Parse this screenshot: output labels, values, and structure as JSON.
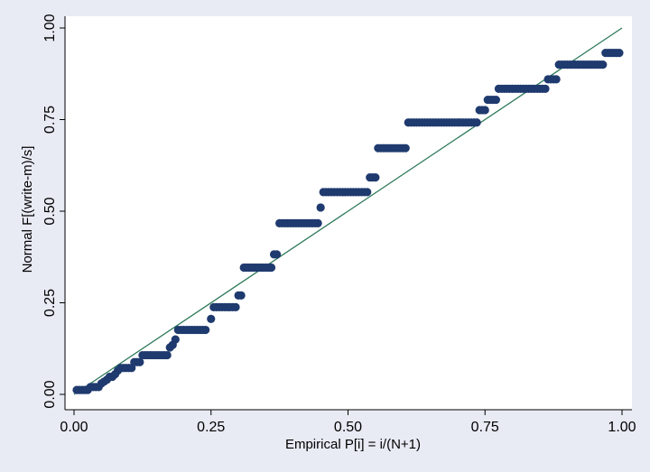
{
  "chart_data": {
    "type": "scatter",
    "title": "",
    "xlabel": "Empirical P[i] = i/(N+1)",
    "ylabel": "Normal F[(write-m)/s]",
    "xlim": [
      0,
      1
    ],
    "ylim": [
      0,
      1
    ],
    "xticks": [
      0,
      0.25,
      0.5,
      0.75,
      1
    ],
    "yticks": [
      0,
      0.25,
      0.5,
      0.75,
      1
    ],
    "xtick_labels": [
      "0.00",
      "0.25",
      "0.50",
      "0.75",
      "1.00"
    ],
    "ytick_labels": [
      "0.00",
      "0.25",
      "0.50",
      "0.75",
      "1.00"
    ],
    "grid": false,
    "legend": "none",
    "reference_line": {
      "x": [
        0,
        1
      ],
      "y": [
        0,
        1
      ]
    },
    "colors": {
      "background": "#e8ebf4",
      "plot_area": "#ffffff",
      "markers": "#1f3a6e",
      "reference_line": "#2e7a5a"
    },
    "series": [
      {
        "points": [
          [
            0.005,
            0.012
          ],
          [
            0.01,
            0.012
          ],
          [
            0.015,
            0.012
          ],
          [
            0.02,
            0.012
          ],
          [
            0.025,
            0.012
          ],
          [
            0.03,
            0.02
          ],
          [
            0.035,
            0.02
          ],
          [
            0.04,
            0.02
          ],
          [
            0.045,
            0.02
          ],
          [
            0.05,
            0.03
          ],
          [
            0.055,
            0.035
          ],
          [
            0.06,
            0.04
          ],
          [
            0.065,
            0.048
          ],
          [
            0.07,
            0.048
          ],
          [
            0.075,
            0.055
          ],
          [
            0.08,
            0.065
          ],
          [
            0.085,
            0.072
          ],
          [
            0.09,
            0.072
          ],
          [
            0.095,
            0.072
          ],
          [
            0.1,
            0.072
          ],
          [
            0.105,
            0.072
          ],
          [
            0.11,
            0.088
          ],
          [
            0.115,
            0.088
          ],
          [
            0.12,
            0.088
          ],
          [
            0.125,
            0.107
          ],
          [
            0.13,
            0.107
          ],
          [
            0.135,
            0.107
          ],
          [
            0.14,
            0.107
          ],
          [
            0.145,
            0.107
          ],
          [
            0.15,
            0.107
          ],
          [
            0.155,
            0.107
          ],
          [
            0.16,
            0.107
          ],
          [
            0.165,
            0.107
          ],
          [
            0.17,
            0.107
          ],
          [
            0.175,
            0.128
          ],
          [
            0.18,
            0.135
          ],
          [
            0.185,
            0.15
          ],
          [
            0.19,
            0.176
          ],
          [
            0.195,
            0.176
          ],
          [
            0.2,
            0.176
          ],
          [
            0.205,
            0.176
          ],
          [
            0.21,
            0.176
          ],
          [
            0.215,
            0.176
          ],
          [
            0.22,
            0.176
          ],
          [
            0.225,
            0.176
          ],
          [
            0.23,
            0.176
          ],
          [
            0.235,
            0.176
          ],
          [
            0.24,
            0.176
          ],
          [
            0.25,
            0.206
          ],
          [
            0.255,
            0.238
          ],
          [
            0.26,
            0.238
          ],
          [
            0.265,
            0.238
          ],
          [
            0.27,
            0.238
          ],
          [
            0.275,
            0.238
          ],
          [
            0.28,
            0.238
          ],
          [
            0.285,
            0.238
          ],
          [
            0.29,
            0.238
          ],
          [
            0.295,
            0.238
          ],
          [
            0.3,
            0.27
          ],
          [
            0.305,
            0.27
          ],
          [
            0.31,
            0.346
          ],
          [
            0.315,
            0.346
          ],
          [
            0.32,
            0.346
          ],
          [
            0.325,
            0.346
          ],
          [
            0.33,
            0.346
          ],
          [
            0.335,
            0.346
          ],
          [
            0.34,
            0.346
          ],
          [
            0.345,
            0.346
          ],
          [
            0.35,
            0.346
          ],
          [
            0.355,
            0.346
          ],
          [
            0.36,
            0.346
          ],
          [
            0.365,
            0.382
          ],
          [
            0.37,
            0.382
          ],
          [
            0.375,
            0.467
          ],
          [
            0.38,
            0.467
          ],
          [
            0.385,
            0.467
          ],
          [
            0.39,
            0.467
          ],
          [
            0.395,
            0.467
          ],
          [
            0.4,
            0.467
          ],
          [
            0.405,
            0.467
          ],
          [
            0.41,
            0.467
          ],
          [
            0.415,
            0.467
          ],
          [
            0.42,
            0.467
          ],
          [
            0.425,
            0.467
          ],
          [
            0.43,
            0.467
          ],
          [
            0.435,
            0.467
          ],
          [
            0.44,
            0.467
          ],
          [
            0.445,
            0.467
          ],
          [
            0.45,
            0.51
          ],
          [
            0.455,
            0.552
          ],
          [
            0.46,
            0.552
          ],
          [
            0.465,
            0.552
          ],
          [
            0.47,
            0.552
          ],
          [
            0.475,
            0.552
          ],
          [
            0.48,
            0.552
          ],
          [
            0.485,
            0.552
          ],
          [
            0.49,
            0.552
          ],
          [
            0.495,
            0.552
          ],
          [
            0.5,
            0.552
          ],
          [
            0.505,
            0.552
          ],
          [
            0.51,
            0.552
          ],
          [
            0.515,
            0.552
          ],
          [
            0.52,
            0.552
          ],
          [
            0.525,
            0.552
          ],
          [
            0.53,
            0.552
          ],
          [
            0.535,
            0.552
          ],
          [
            0.54,
            0.592
          ],
          [
            0.545,
            0.592
          ],
          [
            0.55,
            0.592
          ],
          [
            0.555,
            0.672
          ],
          [
            0.56,
            0.672
          ],
          [
            0.565,
            0.672
          ],
          [
            0.57,
            0.672
          ],
          [
            0.575,
            0.672
          ],
          [
            0.58,
            0.672
          ],
          [
            0.585,
            0.672
          ],
          [
            0.59,
            0.672
          ],
          [
            0.595,
            0.672
          ],
          [
            0.6,
            0.672
          ],
          [
            0.605,
            0.672
          ],
          [
            0.61,
            0.742
          ],
          [
            0.615,
            0.742
          ],
          [
            0.62,
            0.742
          ],
          [
            0.625,
            0.742
          ],
          [
            0.63,
            0.742
          ],
          [
            0.635,
            0.742
          ],
          [
            0.64,
            0.742
          ],
          [
            0.645,
            0.742
          ],
          [
            0.65,
            0.742
          ],
          [
            0.655,
            0.742
          ],
          [
            0.66,
            0.742
          ],
          [
            0.665,
            0.742
          ],
          [
            0.67,
            0.742
          ],
          [
            0.675,
            0.742
          ],
          [
            0.68,
            0.742
          ],
          [
            0.685,
            0.742
          ],
          [
            0.69,
            0.742
          ],
          [
            0.695,
            0.742
          ],
          [
            0.7,
            0.742
          ],
          [
            0.705,
            0.742
          ],
          [
            0.71,
            0.742
          ],
          [
            0.715,
            0.742
          ],
          [
            0.72,
            0.742
          ],
          [
            0.725,
            0.742
          ],
          [
            0.73,
            0.742
          ],
          [
            0.735,
            0.742
          ],
          [
            0.74,
            0.776
          ],
          [
            0.745,
            0.776
          ],
          [
            0.75,
            0.776
          ],
          [
            0.755,
            0.804
          ],
          [
            0.76,
            0.804
          ],
          [
            0.765,
            0.804
          ],
          [
            0.77,
            0.804
          ],
          [
            0.775,
            0.834
          ],
          [
            0.78,
            0.834
          ],
          [
            0.785,
            0.834
          ],
          [
            0.79,
            0.834
          ],
          [
            0.795,
            0.834
          ],
          [
            0.8,
            0.834
          ],
          [
            0.805,
            0.834
          ],
          [
            0.81,
            0.834
          ],
          [
            0.815,
            0.834
          ],
          [
            0.82,
            0.834
          ],
          [
            0.825,
            0.834
          ],
          [
            0.83,
            0.834
          ],
          [
            0.835,
            0.834
          ],
          [
            0.84,
            0.834
          ],
          [
            0.845,
            0.834
          ],
          [
            0.85,
            0.834
          ],
          [
            0.855,
            0.834
          ],
          [
            0.86,
            0.834
          ],
          [
            0.865,
            0.86
          ],
          [
            0.87,
            0.86
          ],
          [
            0.875,
            0.86
          ],
          [
            0.88,
            0.86
          ],
          [
            0.885,
            0.9
          ],
          [
            0.89,
            0.9
          ],
          [
            0.895,
            0.9
          ],
          [
            0.9,
            0.9
          ],
          [
            0.905,
            0.9
          ],
          [
            0.91,
            0.9
          ],
          [
            0.915,
            0.9
          ],
          [
            0.92,
            0.9
          ],
          [
            0.925,
            0.9
          ],
          [
            0.93,
            0.9
          ],
          [
            0.935,
            0.9
          ],
          [
            0.94,
            0.9
          ],
          [
            0.945,
            0.9
          ],
          [
            0.95,
            0.9
          ],
          [
            0.955,
            0.9
          ],
          [
            0.96,
            0.9
          ],
          [
            0.965,
            0.9
          ],
          [
            0.97,
            0.932
          ],
          [
            0.975,
            0.932
          ],
          [
            0.98,
            0.932
          ],
          [
            0.985,
            0.932
          ],
          [
            0.99,
            0.932
          ],
          [
            0.995,
            0.932
          ]
        ]
      }
    ]
  }
}
